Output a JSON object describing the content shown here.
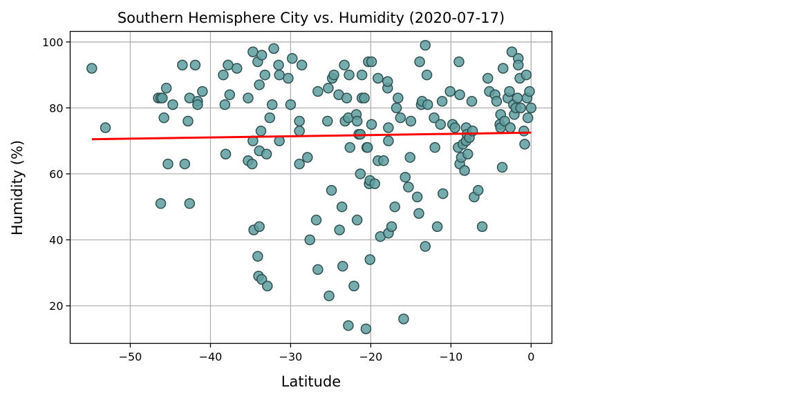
{
  "chart_data": {
    "type": "scatter",
    "title": "Southern Hemisphere City vs. Humidity (2020-07-17)",
    "xlabel": "Latitude",
    "ylabel": "Humidity (%)",
    "xlim": [
      -57.5,
      2.6
    ],
    "ylim": [
      8.6,
      103.2
    ],
    "xticks": [
      -50,
      -40,
      -30,
      -20,
      -10,
      0
    ],
    "yticks": [
      20,
      40,
      60,
      80,
      100
    ],
    "grid": true,
    "colors": {
      "marker_fill": "#5f9ea0",
      "marker_edge": "#2f5050",
      "regression": "#ff0000"
    },
    "regression_line": {
      "x": [
        -54.8,
        0
      ],
      "y": [
        70.5,
        72.5
      ]
    },
    "points": [
      [
        -54.8,
        92
      ],
      [
        -53.1,
        74
      ],
      [
        -46.5,
        83
      ],
      [
        -46.2,
        83
      ],
      [
        -46,
        83
      ],
      [
        -45.8,
        77
      ],
      [
        -45.5,
        86
      ],
      [
        -45.3,
        63
      ],
      [
        -44.7,
        81
      ],
      [
        -46.2,
        51
      ],
      [
        -43.5,
        93
      ],
      [
        -43.2,
        63
      ],
      [
        -42.8,
        76
      ],
      [
        -42.6,
        83
      ],
      [
        -42.6,
        51
      ],
      [
        -41.9,
        93
      ],
      [
        -41.6,
        82
      ],
      [
        -41.6,
        81
      ],
      [
        -41,
        85
      ],
      [
        -38.4,
        90
      ],
      [
        -38.2,
        81
      ],
      [
        -38.1,
        66
      ],
      [
        -37.8,
        93
      ],
      [
        -37.6,
        84
      ],
      [
        -36.7,
        92
      ],
      [
        -35.3,
        83
      ],
      [
        -35.3,
        64
      ],
      [
        -34.8,
        63
      ],
      [
        -34.7,
        97
      ],
      [
        -34.7,
        70
      ],
      [
        -34.6,
        43
      ],
      [
        -34.1,
        94
      ],
      [
        -34.1,
        35
      ],
      [
        -34,
        29
      ],
      [
        -33.9,
        87
      ],
      [
        -33.9,
        67
      ],
      [
        -33.9,
        44
      ],
      [
        -33.7,
        73
      ],
      [
        -33.6,
        96
      ],
      [
        -33.6,
        28
      ],
      [
        -33.2,
        90
      ],
      [
        -33,
        66
      ],
      [
        -32.9,
        26
      ],
      [
        -32.6,
        77
      ],
      [
        -32.3,
        81
      ],
      [
        -32.1,
        98
      ],
      [
        -31.5,
        93
      ],
      [
        -31.4,
        90
      ],
      [
        -31.4,
        70
      ],
      [
        -30.3,
        89
      ],
      [
        -30,
        81
      ],
      [
        -29.8,
        95
      ],
      [
        -28.9,
        76
      ],
      [
        -28.9,
        73
      ],
      [
        -28.9,
        63
      ],
      [
        -28.6,
        93
      ],
      [
        -27.9,
        65
      ],
      [
        -27.6,
        40
      ],
      [
        -26.8,
        46
      ],
      [
        -26.6,
        31
      ],
      [
        -26.6,
        85
      ],
      [
        -25.4,
        76
      ],
      [
        -25.3,
        86
      ],
      [
        -25.2,
        23
      ],
      [
        -24.9,
        55
      ],
      [
        -24.8,
        89
      ],
      [
        -24.6,
        90
      ],
      [
        -24,
        84
      ],
      [
        -23.9,
        43
      ],
      [
        -23.6,
        50
      ],
      [
        -23.5,
        32
      ],
      [
        -23.3,
        93
      ],
      [
        -23.2,
        76
      ],
      [
        -23,
        83
      ],
      [
        -22.8,
        14
      ],
      [
        -22.8,
        77
      ],
      [
        -22.7,
        90
      ],
      [
        -22.6,
        68
      ],
      [
        -22.1,
        26
      ],
      [
        -21.8,
        78
      ],
      [
        -21.7,
        76
      ],
      [
        -21.7,
        46
      ],
      [
        -21.5,
        72
      ],
      [
        -21.3,
        72
      ],
      [
        -21.3,
        60
      ],
      [
        -21.1,
        83
      ],
      [
        -21.1,
        90
      ],
      [
        -20.8,
        83
      ],
      [
        -20.6,
        13
      ],
      [
        -20.5,
        68
      ],
      [
        -20.4,
        68
      ],
      [
        -20.3,
        94
      ],
      [
        -20.2,
        57
      ],
      [
        -20.1,
        58
      ],
      [
        -19.9,
        94
      ],
      [
        -19.9,
        75
      ],
      [
        -20.1,
        34
      ],
      [
        -19.5,
        57
      ],
      [
        -19.1,
        89
      ],
      [
        -19.1,
        64
      ],
      [
        -18.8,
        41
      ],
      [
        -18.4,
        64
      ],
      [
        -17.9,
        86
      ],
      [
        -17.9,
        88
      ],
      [
        -17.8,
        74
      ],
      [
        -17.8,
        70
      ],
      [
        -17.8,
        42
      ],
      [
        -17.4,
        44
      ],
      [
        -17,
        50
      ],
      [
        -16.8,
        80
      ],
      [
        -16.6,
        83
      ],
      [
        -16.3,
        77
      ],
      [
        -15.9,
        16
      ],
      [
        -15.7,
        59
      ],
      [
        -15.3,
        56
      ],
      [
        -15.1,
        65
      ],
      [
        -15,
        76
      ],
      [
        -14.2,
        53
      ],
      [
        -14,
        48
      ],
      [
        -13.9,
        94
      ],
      [
        -13.7,
        81
      ],
      [
        -13.6,
        82
      ],
      [
        -13.2,
        99
      ],
      [
        -13.2,
        38
      ],
      [
        -13,
        90
      ],
      [
        -12.9,
        81
      ],
      [
        -12.1,
        77
      ],
      [
        -12,
        68
      ],
      [
        -11.7,
        44
      ],
      [
        -11.3,
        75
      ],
      [
        -11.1,
        82
      ],
      [
        -11,
        54
      ],
      [
        -10.1,
        85
      ],
      [
        -9.8,
        75
      ],
      [
        -9.5,
        74
      ],
      [
        -9.1,
        68
      ],
      [
        -9,
        94
      ],
      [
        -8.9,
        63
      ],
      [
        -8.9,
        84
      ],
      [
        -8.7,
        65
      ],
      [
        -8.5,
        69
      ],
      [
        -8.3,
        61
      ],
      [
        -8.1,
        74
      ],
      [
        -8.1,
        70
      ],
      [
        -8,
        72
      ],
      [
        -7.9,
        66
      ],
      [
        -7.7,
        71
      ],
      [
        -7.4,
        82
      ],
      [
        -7.3,
        73
      ],
      [
        -7.1,
        53
      ],
      [
        -6.6,
        55
      ],
      [
        -6.1,
        44
      ],
      [
        -5.4,
        89
      ],
      [
        -5.2,
        85
      ],
      [
        -4.5,
        84
      ],
      [
        -4.3,
        82
      ],
      [
        -3.9,
        75
      ],
      [
        -3.8,
        78
      ],
      [
        -3.8,
        74
      ],
      [
        -3.6,
        62
      ],
      [
        -3.5,
        92
      ],
      [
        -3.3,
        76
      ],
      [
        -2.9,
        83
      ],
      [
        -2.7,
        85
      ],
      [
        -2.6,
        74
      ],
      [
        -2.4,
        97
      ],
      [
        -2.2,
        81
      ],
      [
        -2.1,
        78
      ],
      [
        -1.9,
        80
      ],
      [
        -1.7,
        83
      ],
      [
        -1.6,
        95
      ],
      [
        -1.6,
        93
      ],
      [
        -1.4,
        89
      ],
      [
        -1.3,
        80
      ],
      [
        -0.9,
        73
      ],
      [
        -0.8,
        69
      ],
      [
        -0.6,
        90
      ],
      [
        -0.5,
        83
      ],
      [
        -0.4,
        77
      ],
      [
        -0.2,
        85
      ],
      [
        0,
        80
      ]
    ]
  }
}
